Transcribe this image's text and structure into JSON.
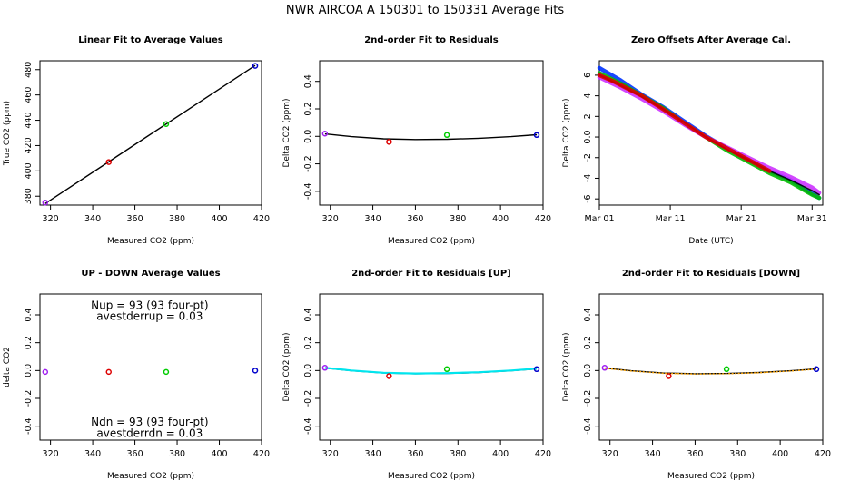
{
  "main_title": "NWR   AIRCOA A   150301 to 150331   Average Fits",
  "colors": {
    "axis": "#000000",
    "purple": "#a020f0",
    "red": "#dd0000",
    "green": "#00cc00",
    "blue": "#0000cc",
    "fit_black": "#000000",
    "fit_up": "#00e5ee",
    "fit_down": "#ffa500",
    "series_magenta": "#cc33ff",
    "series_blue": "#0033ff",
    "series_green": "#00bb00",
    "series_red": "#dd0000",
    "series_black": "#000000"
  },
  "chart_data": [
    {
      "id": "linear-fit",
      "type": "scatter",
      "title": "Linear Fit to Average Values",
      "xlabel": "Measured CO2 (ppm)",
      "ylabel": "True CO2 (ppm)",
      "xlim": [
        315,
        420
      ],
      "ylim": [
        373,
        487
      ],
      "xticks": [
        320,
        340,
        360,
        380,
        400,
        420
      ],
      "yticks": [
        380,
        400,
        420,
        440,
        460,
        480
      ],
      "grid": false,
      "points": [
        {
          "x": 317.5,
          "y": 375.0,
          "color": "#a020f0"
        },
        {
          "x": 347.6,
          "y": 407.0,
          "color": "#dd0000"
        },
        {
          "x": 374.8,
          "y": 437.0,
          "color": "#00cc00"
        },
        {
          "x": 417.0,
          "y": 483.0,
          "color": "#0000cc"
        }
      ],
      "lines": [
        {
          "color": "#000000",
          "points": [
            [
              317.5,
              374.2
            ],
            [
              417.0,
              483.3
            ]
          ]
        }
      ]
    },
    {
      "id": "residuals",
      "type": "scatter",
      "title": "2nd-order Fit to Residuals",
      "xlabel": "Measured CO2 (ppm)",
      "ylabel": "Delta CO2 (ppm)",
      "xlim": [
        315,
        420
      ],
      "ylim": [
        -0.5,
        0.55
      ],
      "xticks": [
        320,
        340,
        360,
        380,
        400,
        420
      ],
      "yticks": [
        -0.4,
        -0.2,
        0.0,
        0.2,
        0.4
      ],
      "grid": false,
      "points": [
        {
          "x": 317.5,
          "y": 0.02,
          "color": "#a020f0"
        },
        {
          "x": 347.6,
          "y": -0.04,
          "color": "#dd0000"
        },
        {
          "x": 374.8,
          "y": 0.01,
          "color": "#00cc00"
        },
        {
          "x": 417.0,
          "y": 0.01,
          "color": "#0000cc"
        }
      ],
      "lines": [
        {
          "color": "#000000",
          "points": [
            [
              317.5,
              0.018
            ],
            [
              330,
              -0.002
            ],
            [
              345,
              -0.018
            ],
            [
              360,
              -0.023
            ],
            [
              375,
              -0.021
            ],
            [
              390,
              -0.014
            ],
            [
              405,
              -0.002
            ],
            [
              417,
              0.012
            ]
          ]
        }
      ]
    },
    {
      "id": "zero-offsets",
      "type": "line",
      "title": "Zero Offsets After Average Cal.",
      "xlabel": "Date (UTC)",
      "ylabel": "Delta CO2 (ppm)",
      "xlim": [
        0,
        31.5
      ],
      "ylim": [
        -6.6,
        7.4
      ],
      "xticks": [
        0,
        10,
        20,
        30
      ],
      "xticklabels": [
        "Mar 01",
        "Mar 11",
        "Mar 21",
        "Mar 31"
      ],
      "yticks": [
        -6,
        -4,
        -2,
        0,
        2,
        4,
        6
      ],
      "grid": false,
      "series": [
        {
          "color": "#0033ff",
          "points": [
            [
              0,
              6.7
            ],
            [
              3,
              5.5
            ],
            [
              6,
              4.1
            ],
            [
              9,
              2.9
            ],
            [
              12,
              1.5
            ],
            [
              15,
              0.1
            ],
            [
              18,
              -1.1
            ],
            [
              21,
              -2.2
            ],
            [
              24,
              -3.3
            ],
            [
              27,
              -4.2
            ],
            [
              30,
              -5.5
            ],
            [
              31,
              -5.9
            ]
          ]
        },
        {
          "color": "#00bb00",
          "points": [
            [
              0,
              6.2
            ],
            [
              3,
              5.2
            ],
            [
              6,
              4.0
            ],
            [
              9,
              2.8
            ],
            [
              12,
              1.3
            ],
            [
              15,
              0.0
            ],
            [
              18,
              -1.3
            ],
            [
              21,
              -2.4
            ],
            [
              24,
              -3.5
            ],
            [
              27,
              -4.4
            ],
            [
              30,
              -5.6
            ],
            [
              31,
              -5.9
            ]
          ]
        },
        {
          "color": "#cc33ff",
          "points": [
            [
              0,
              5.8
            ],
            [
              3,
              4.8
            ],
            [
              6,
              3.7
            ],
            [
              9,
              2.5
            ],
            [
              12,
              1.2
            ],
            [
              15,
              0.0
            ],
            [
              18,
              -1.0
            ],
            [
              21,
              -2.0
            ],
            [
              24,
              -3.0
            ],
            [
              27,
              -3.9
            ],
            [
              30,
              -4.9
            ],
            [
              31,
              -5.4
            ]
          ]
        },
        {
          "color": "#000000",
          "points": [
            [
              0,
              6.0
            ],
            [
              3,
              5.0
            ],
            [
              6,
              3.9
            ],
            [
              9,
              2.7
            ],
            [
              12,
              1.4
            ],
            [
              15,
              0.0
            ],
            [
              18,
              -1.2
            ],
            [
              21,
              -2.2
            ],
            [
              24,
              -3.3
            ],
            [
              27,
              -4.2
            ],
            [
              30,
              -5.2
            ],
            [
              31,
              -5.6
            ]
          ]
        },
        {
          "color": "#dd0000",
          "points": [
            [
              0,
              6.0
            ],
            [
              2,
              5.4
            ],
            [
              4,
              4.7
            ],
            [
              6,
              4.0
            ],
            [
              9,
              2.7
            ],
            [
              15,
              0.0
            ],
            [
              21,
              -2.2
            ],
            [
              24,
              -3.3
            ]
          ]
        }
      ]
    },
    {
      "id": "up-down",
      "type": "scatter",
      "title": "UP - DOWN Average Values",
      "xlabel": "Measured CO2 (ppm)",
      "ylabel": "delta CO2",
      "xlim": [
        315,
        420
      ],
      "ylim": [
        -0.5,
        0.55
      ],
      "xticks": [
        320,
        340,
        360,
        380,
        400,
        420
      ],
      "yticks": [
        -0.4,
        -0.2,
        0.0,
        0.2,
        0.4
      ],
      "grid": false,
      "points": [
        {
          "x": 317.5,
          "y": -0.01,
          "color": "#a020f0"
        },
        {
          "x": 347.6,
          "y": -0.01,
          "color": "#dd0000"
        },
        {
          "x": 374.8,
          "y": -0.01,
          "color": "#00cc00"
        },
        {
          "x": 417.0,
          "y": 0.0,
          "color": "#0000cc"
        }
      ],
      "lines": [],
      "annotations": [
        {
          "text": "Nup = 93 (93 four-pt)",
          "x": 367,
          "y": 0.47
        },
        {
          "text": "avestderrup =  0.03",
          "x": 367,
          "y": 0.39
        },
        {
          "text": "Ndn = 93 (93 four-pt)",
          "x": 367,
          "y": -0.37
        },
        {
          "text": "avestderrdn =  0.03",
          "x": 367,
          "y": -0.45
        }
      ]
    },
    {
      "id": "residuals-up",
      "type": "scatter",
      "title": "2nd-order Fit to Residuals [UP]",
      "xlabel": "Measured CO2 (ppm)",
      "ylabel": "Delta CO2 (ppm)",
      "xlim": [
        315,
        420
      ],
      "ylim": [
        -0.5,
        0.55
      ],
      "xticks": [
        320,
        340,
        360,
        380,
        400,
        420
      ],
      "yticks": [
        -0.4,
        -0.2,
        0.0,
        0.2,
        0.4
      ],
      "grid": false,
      "points": [
        {
          "x": 317.5,
          "y": 0.02,
          "color": "#a020f0"
        },
        {
          "x": 347.6,
          "y": -0.04,
          "color": "#dd0000"
        },
        {
          "x": 374.8,
          "y": 0.01,
          "color": "#00cc00"
        },
        {
          "x": 417.0,
          "y": 0.01,
          "color": "#0000cc"
        }
      ],
      "lines": [
        {
          "color": "#000000",
          "points": [
            [
              317.5,
              0.018
            ],
            [
              330,
              -0.002
            ],
            [
              345,
              -0.018
            ],
            [
              360,
              -0.023
            ],
            [
              375,
              -0.021
            ],
            [
              390,
              -0.014
            ],
            [
              405,
              -0.002
            ],
            [
              417,
              0.012
            ]
          ]
        },
        {
          "color": "#00e5ee",
          "points": [
            [
              317.5,
              0.02
            ],
            [
              330,
              0.0
            ],
            [
              345,
              -0.016
            ],
            [
              360,
              -0.021
            ],
            [
              375,
              -0.019
            ],
            [
              390,
              -0.012
            ],
            [
              405,
              0.0
            ],
            [
              417,
              0.014
            ]
          ]
        }
      ]
    },
    {
      "id": "residuals-down",
      "type": "scatter",
      "title": "2nd-order Fit to Residuals [DOWN]",
      "xlabel": "Measured CO2 (ppm)",
      "ylabel": "Delta CO2 (ppm)",
      "xlim": [
        315,
        420
      ],
      "ylim": [
        -0.5,
        0.55
      ],
      "xticks": [
        320,
        340,
        360,
        380,
        400,
        420
      ],
      "yticks": [
        -0.4,
        -0.2,
        0.0,
        0.2,
        0.4
      ],
      "grid": false,
      "points": [
        {
          "x": 317.5,
          "y": 0.02,
          "color": "#a020f0"
        },
        {
          "x": 347.6,
          "y": -0.04,
          "color": "#dd0000"
        },
        {
          "x": 374.8,
          "y": 0.01,
          "color": "#00cc00"
        },
        {
          "x": 417.0,
          "y": 0.01,
          "color": "#0000cc"
        }
      ],
      "lines": [
        {
          "color": "#000000",
          "points": [
            [
              317.5,
              0.018
            ],
            [
              330,
              -0.002
            ],
            [
              345,
              -0.018
            ],
            [
              360,
              -0.023
            ],
            [
              375,
              -0.021
            ],
            [
              390,
              -0.014
            ],
            [
              405,
              -0.002
            ],
            [
              417,
              0.012
            ]
          ]
        },
        {
          "color": "#ffa500",
          "points": [
            [
              317.5,
              0.016
            ],
            [
              330,
              -0.004
            ],
            [
              345,
              -0.02
            ],
            [
              360,
              -0.025
            ],
            [
              375,
              -0.023
            ],
            [
              390,
              -0.016
            ],
            [
              405,
              -0.004
            ],
            [
              417,
              0.01
            ]
          ],
          "dashed": true
        }
      ]
    }
  ]
}
